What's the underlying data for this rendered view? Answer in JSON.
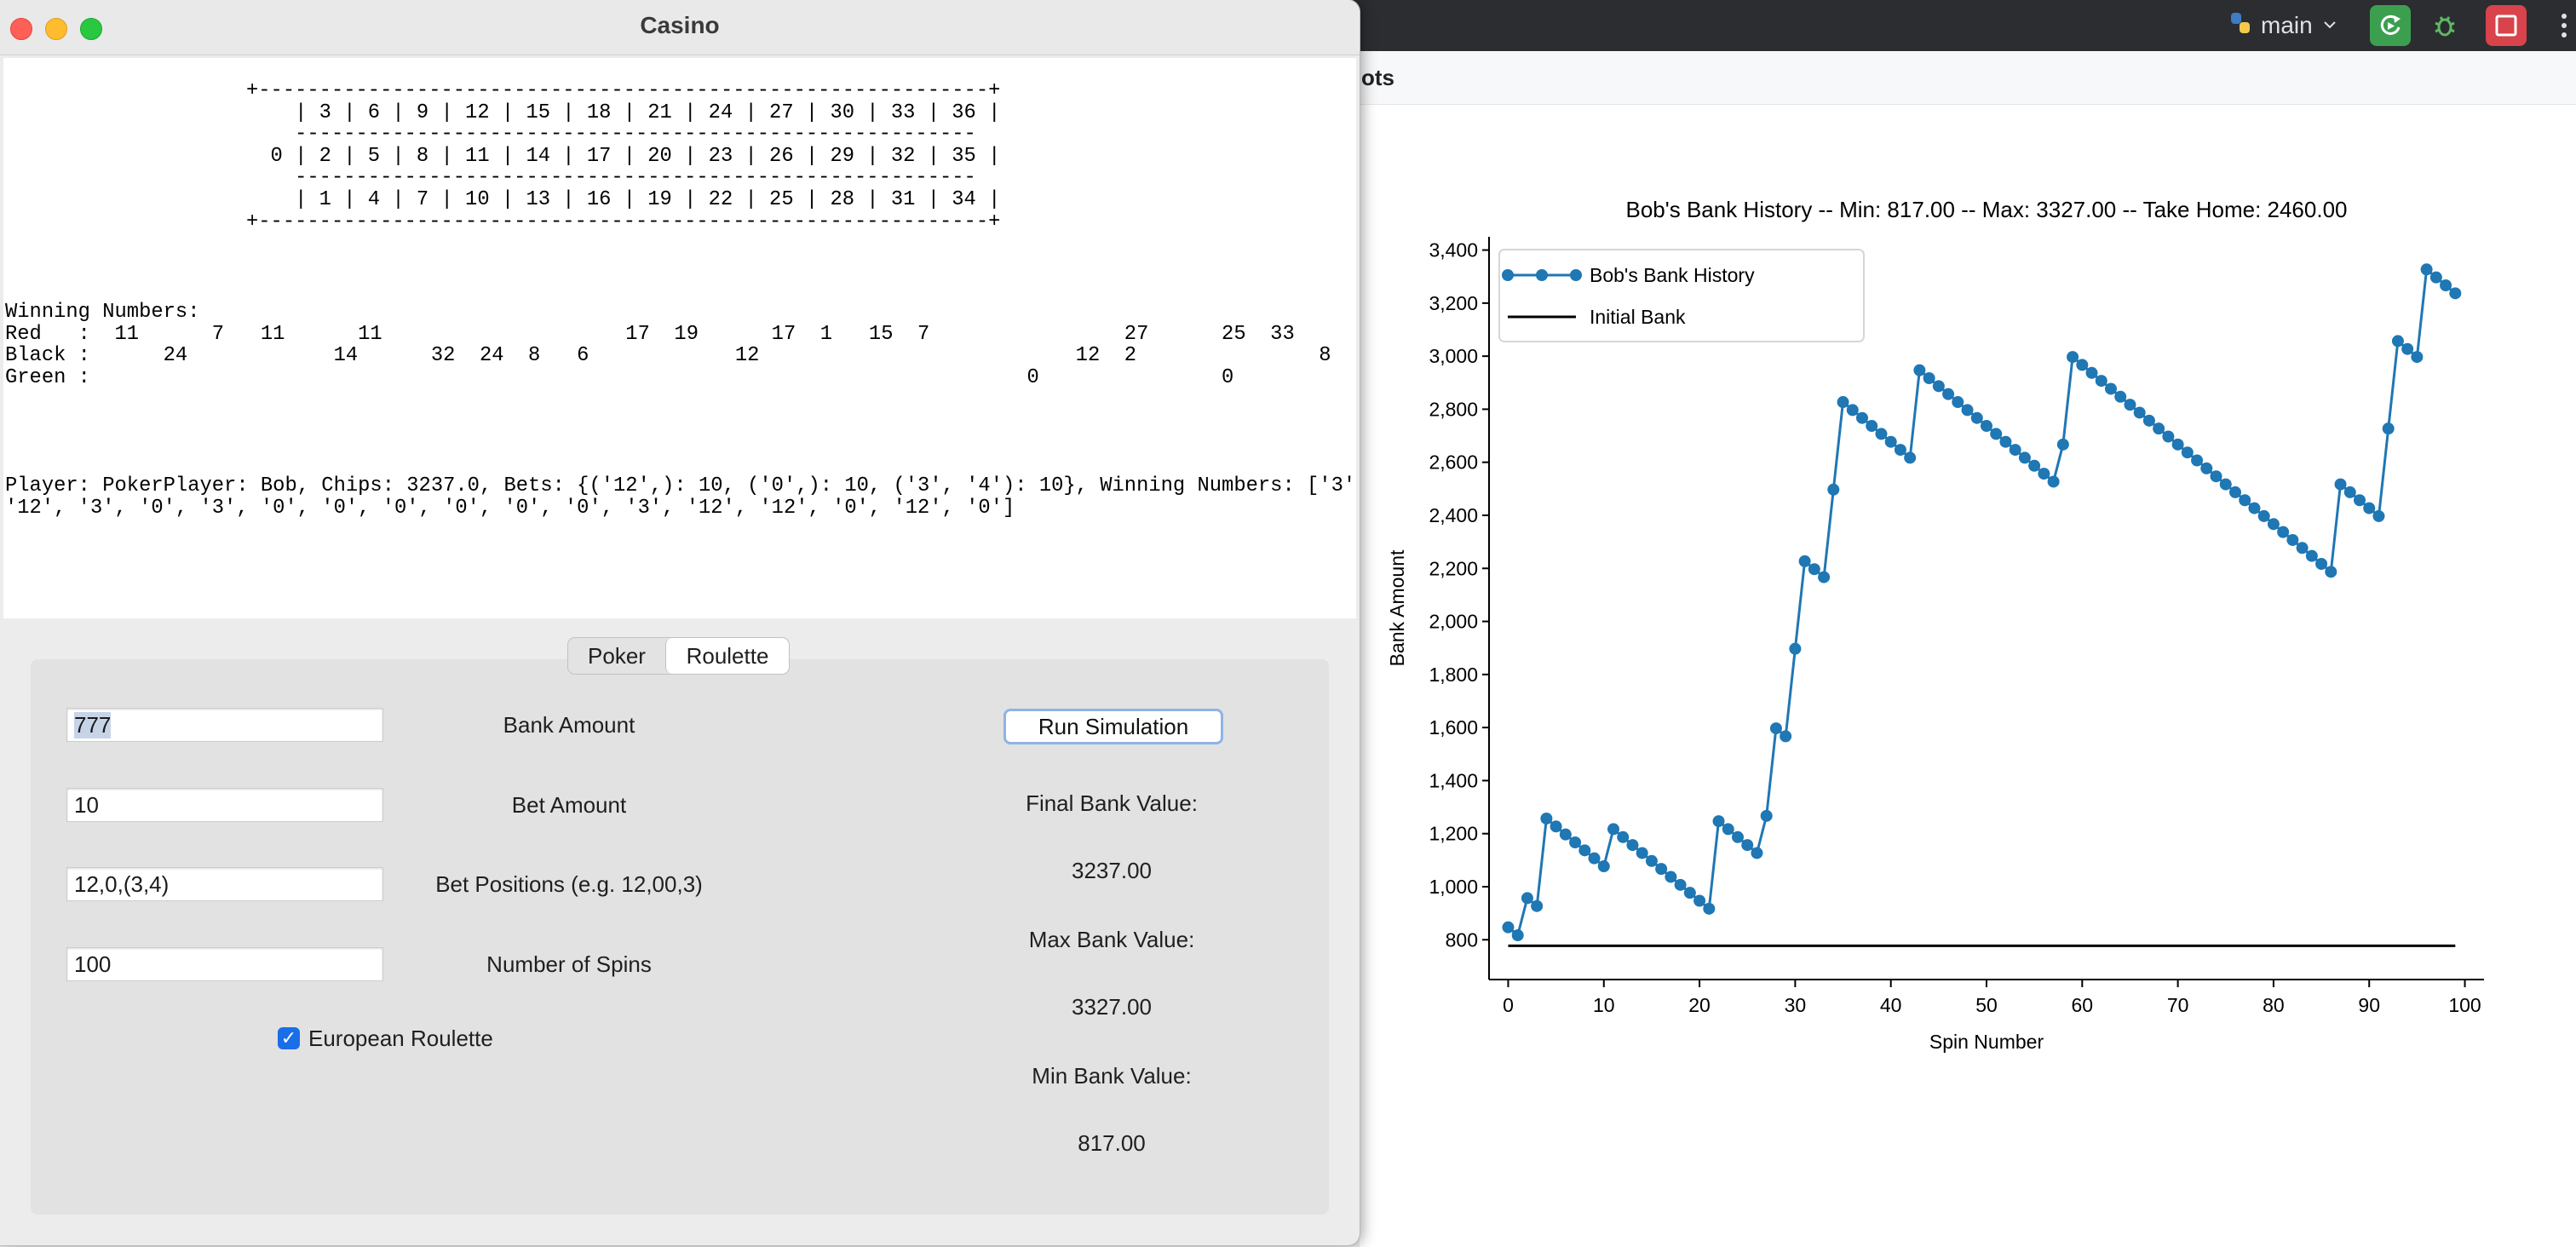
{
  "ide": {
    "tab_fragment": "ots",
    "branch_name": "main"
  },
  "window": {
    "title": "Casino"
  },
  "output": {
    "board_text": "+------------------------------------------------------------+\n    | 3 | 6 | 9 | 12 | 15 | 18 | 21 | 24 | 27 | 30 | 33 | 36 |\n    --------------------------------------------------------\n  0 | 2 | 5 | 8 | 11 | 14 | 17 | 20 | 23 | 26 | 29 | 32 | 35 |\n    --------------------------------------------------------\n    | 1 | 4 | 7 | 10 | 13 | 16 | 19 | 22 | 25 | 28 | 31 | 34 |\n+------------------------------------------------------------+",
    "winning_text": "Winning Numbers:\nRed   :  11      7   11      11                    17  19      17  1   15  7                27      25  33\nBlack :      24            14      32  24  8   6            12                          12  2               8\nGreen :                                                                             0               0",
    "player_text": "Player: PokerPlayer: Bob, Chips: 3237.0, Bets: {('12',): 10, ('0',): 10, ('3', '4'): 10}, Winning Numbers: ['3',\n'12', '3', '0', '3', '0', '0', '0', '0', '0', '0', '3', '12', '12', '0', '12', '0']"
  },
  "tabs": {
    "poker": "Poker",
    "roulette": "Roulette"
  },
  "form": {
    "bank_amount_value": "777",
    "bank_amount_label": "Bank Amount",
    "bet_amount_value": "10",
    "bet_amount_label": "Bet Amount",
    "bet_positions_value": "12,0,(3,4)",
    "bet_positions_label": "Bet Positions (e.g. 12,00,3)",
    "num_spins_value": "100",
    "num_spins_label": "Number of Spins",
    "european_label": "European Roulette",
    "european_checked": true
  },
  "results": {
    "run_button": "Run Simulation",
    "final_label": "Final Bank Value:",
    "final_value": "3237.00",
    "max_label": "Max Bank Value:",
    "max_value": "3327.00",
    "min_label": "Min Bank Value:",
    "min_value": "817.00"
  },
  "chart_data": {
    "type": "line",
    "title": "Bob's Bank History -- Min: 817.00 -- Max: 3327.00 -- Take Home: 2460.00",
    "xlabel": "Spin Number",
    "ylabel": "Bank Amount",
    "xlim": [
      -2,
      102
    ],
    "ylim": [
      650,
      3450
    ],
    "xticks": [
      0,
      10,
      20,
      30,
      40,
      50,
      60,
      70,
      80,
      90,
      100
    ],
    "yticks": [
      800,
      1000,
      1200,
      1400,
      1600,
      1800,
      2000,
      2200,
      2400,
      2600,
      2800,
      3000,
      3200,
      3400
    ],
    "ytick_labels": [
      "800",
      "1,000",
      "1,200",
      "1,400",
      "1,600",
      "1,800",
      "2,000",
      "2,200",
      "2,400",
      "2,600",
      "2,800",
      "3,000",
      "3,200",
      "3,400"
    ],
    "legend_position": "top-left",
    "grid": false,
    "series": [
      {
        "name": "Bob's Bank History",
        "color": "#1f77b4",
        "marker": "circle",
        "x": [
          0,
          1,
          2,
          3,
          4,
          5,
          6,
          7,
          8,
          9,
          10,
          11,
          12,
          13,
          14,
          15,
          16,
          17,
          18,
          19,
          20,
          21,
          22,
          23,
          24,
          25,
          26,
          27,
          28,
          29,
          30,
          31,
          32,
          33,
          34,
          35,
          36,
          37,
          38,
          39,
          40,
          41,
          42,
          43,
          44,
          45,
          46,
          47,
          48,
          49,
          50,
          51,
          52,
          53,
          54,
          55,
          56,
          57,
          58,
          59,
          60,
          61,
          62,
          63,
          64,
          65,
          66,
          67,
          68,
          69,
          70,
          71,
          72,
          73,
          74,
          75,
          76,
          77,
          78,
          79,
          80,
          81,
          82,
          83,
          84,
          85,
          86,
          87,
          88,
          89,
          90,
          91,
          92,
          93,
          94,
          95,
          96,
          97,
          98,
          99
        ],
        "values": [
          847,
          817,
          957,
          927,
          1257,
          1227,
          1197,
          1167,
          1137,
          1107,
          1077,
          1217,
          1187,
          1157,
          1127,
          1097,
          1067,
          1037,
          1007,
          977,
          947,
          917,
          1247,
          1217,
          1187,
          1157,
          1127,
          1267,
          1597,
          1567,
          1897,
          2227,
          2197,
          2167,
          2497,
          2827,
          2797,
          2767,
          2737,
          2707,
          2677,
          2647,
          2617,
          2947,
          2917,
          2887,
          2857,
          2827,
          2797,
          2767,
          2737,
          2707,
          2677,
          2647,
          2617,
          2587,
          2557,
          2527,
          2667,
          2997,
          2967,
          2937,
          2907,
          2877,
          2847,
          2817,
          2787,
          2757,
          2727,
          2697,
          2667,
          2637,
          2607,
          2577,
          2547,
          2517,
          2487,
          2457,
          2427,
          2397,
          2367,
          2337,
          2307,
          2277,
          2247,
          2217,
          2187,
          2517,
          2487,
          2457,
          2427,
          2397,
          2727,
          3057,
          3027,
          2997,
          3327,
          3297,
          3267,
          3237
        ]
      },
      {
        "name": "Initial Bank",
        "color": "#000000",
        "marker": "none",
        "x": [
          0,
          99
        ],
        "values": [
          777,
          777
        ]
      }
    ]
  }
}
